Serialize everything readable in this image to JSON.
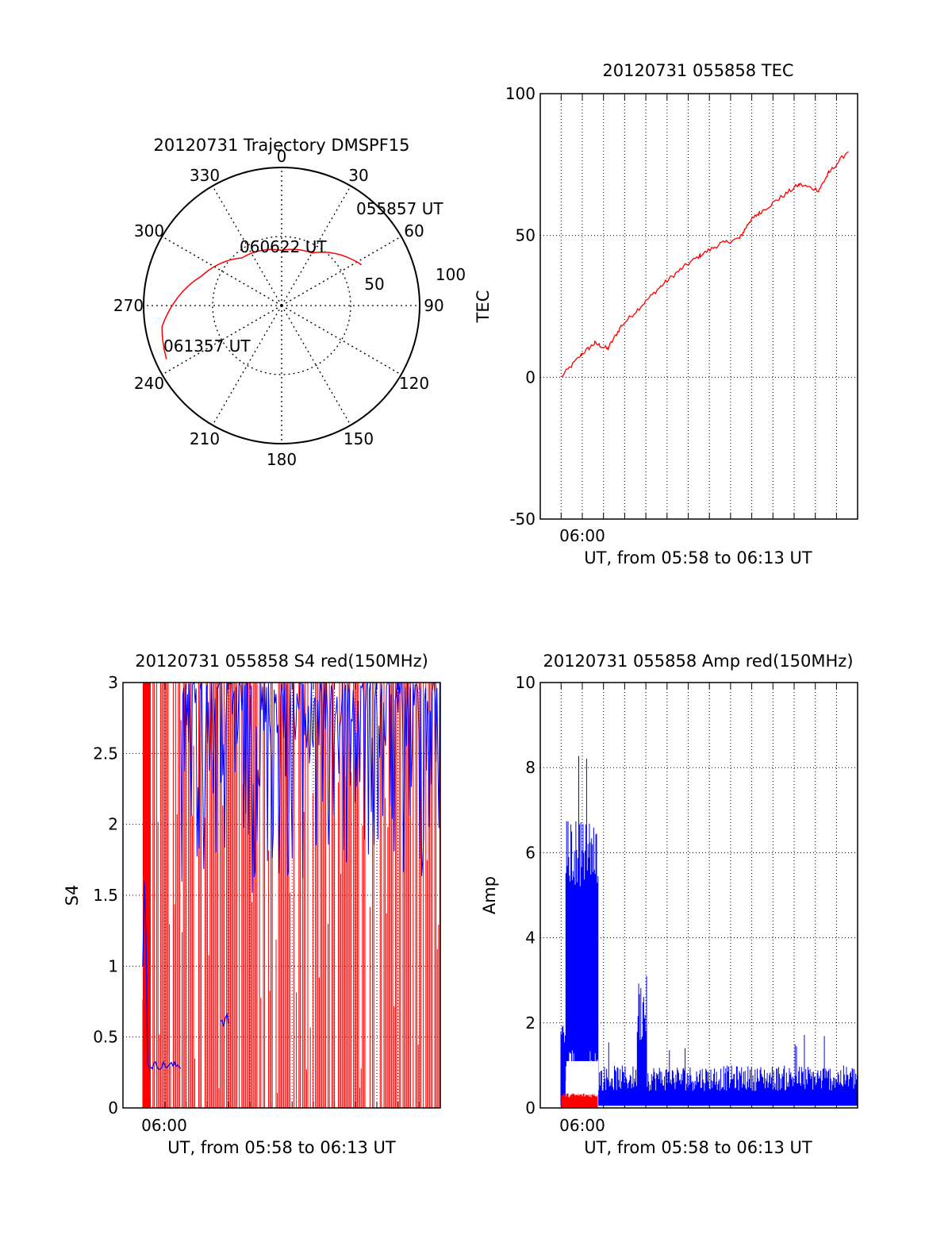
{
  "chart_data": [
    {
      "type": "polar",
      "title": "20120731 Trajectory DMSPF15",
      "azimuth_labels": [
        "0",
        "30",
        "60",
        "90",
        "120",
        "150",
        "180",
        "210",
        "240",
        "270",
        "300",
        "330"
      ],
      "radial_labels": [
        "50",
        "100"
      ],
      "radial_range": [
        0,
        100
      ],
      "grid": true,
      "trajectory": {
        "color": "#ff0000",
        "points": [
          {
            "az": 63,
            "r": 65,
            "label": "055857 UT"
          },
          {
            "az": 30,
            "r": 44
          },
          {
            "az": 0,
            "r": 40
          },
          {
            "az": -40,
            "r": 45,
            "label": "060622 UT"
          },
          {
            "az": -70,
            "r": 62
          },
          {
            "az": -100,
            "r": 88
          },
          {
            "az": -115,
            "r": 92,
            "label": "061357 UT"
          }
        ]
      }
    },
    {
      "type": "line",
      "title": "20120731 055858 TEC",
      "xlabel": "UT, from 05:58 to 06:13 UT",
      "ylabel": "TEC",
      "x_tick_labels": [
        "06:00"
      ],
      "y_tick_labels": [
        "100",
        "50",
        "0",
        "-50"
      ],
      "ylim": [
        -50,
        100
      ],
      "grid": true,
      "series": [
        {
          "color": "#ff0000",
          "x_minutes_UT": [
            "05:58:58",
            "06:00:00",
            "06:00:40",
            "06:01:20",
            "06:02:00",
            "06:03:00",
            "06:04:00",
            "06:05:00",
            "06:06:00",
            "06:07:00",
            "06:08:00",
            "06:08:30",
            "06:09:00",
            "06:10:00",
            "06:11:00",
            "06:12:00",
            "06:12:30",
            "06:13:30"
          ],
          "values": [
            0,
            8,
            12,
            10,
            18,
            25,
            32,
            38,
            43,
            47,
            49,
            55,
            58,
            63,
            68,
            66,
            72,
            80
          ]
        }
      ]
    },
    {
      "type": "line",
      "title": "20120731 055858 S4 red(150MHz)",
      "xlabel": "UT, from 05:58 to 06:13 UT",
      "ylabel": "S4",
      "x_tick_labels": [
        "06:00"
      ],
      "y_tick_labels": [
        "0",
        "0.5",
        "1",
        "1.5",
        "2",
        "2.5",
        "3"
      ],
      "ylim": [
        0,
        3
      ],
      "grid": true,
      "series": [
        {
          "color": "#ff0000",
          "description_values": "dense oscillation between 0 and 3"
        },
        {
          "color": "#0000ff",
          "segments": [
            {
              "from": "05:59:00",
              "to": "06:00:00",
              "level": 0.3
            },
            {
              "from": "06:02:30",
              "to": "06:03:00",
              "level": 0.65
            },
            {
              "from": "06:03:00",
              "to": "06:13:30",
              "level": "2.2–3"
            }
          ]
        }
      ]
    },
    {
      "type": "line",
      "title": "20120731 055858 Amp red(150MHz)",
      "xlabel": "UT, from 05:58 to 06:13 UT",
      "ylabel": "Amp",
      "x_tick_labels": [
        "06:00"
      ],
      "y_tick_labels": [
        "0",
        "2",
        "4",
        "6",
        "8",
        "10"
      ],
      "ylim": [
        0,
        10
      ],
      "grid": true,
      "series": [
        {
          "color": "#0000ff",
          "peaks": [
            {
              "t": "05:59:00",
              "v": 1.8
            },
            {
              "t": "05:59:30",
              "v": 6.5
            },
            {
              "t": "06:00:00",
              "v": 8.9
            },
            {
              "t": "06:00:40",
              "v": 7.0
            },
            {
              "t": "06:02:00",
              "v": 3.1
            },
            {
              "t": "06:04:00",
              "v": 1.3
            },
            {
              "t": "06:10:00",
              "v": 1.8
            },
            {
              "t": "06:13:00",
              "v": 1.2
            }
          ]
        },
        {
          "color": "#ff0000",
          "level": 0.25
        }
      ]
    }
  ]
}
